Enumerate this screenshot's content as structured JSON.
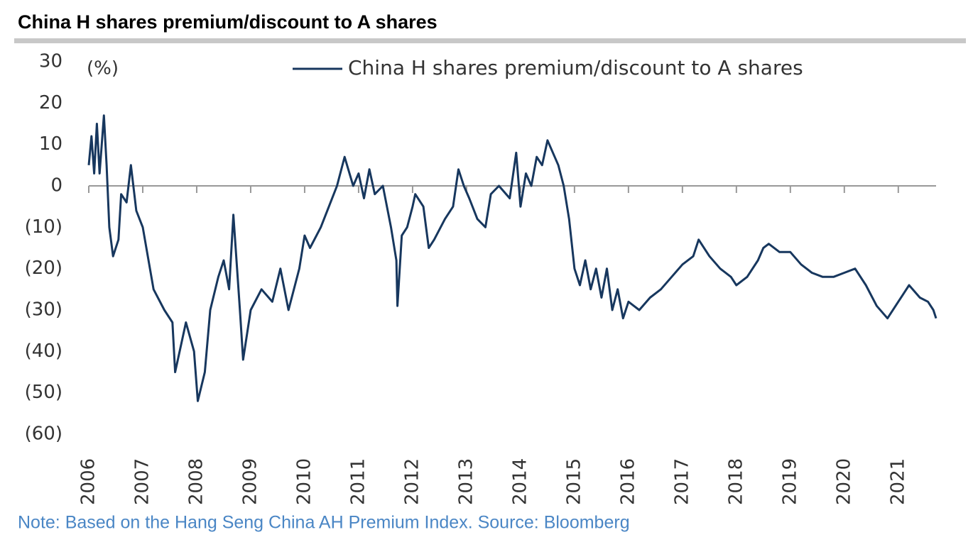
{
  "chart_data": {
    "type": "line",
    "title": "China H shares premium/discount to A shares",
    "y_unit": "(%)",
    "note": "Note: Based on the Hang Seng China AH Premium Index. Source: Bloomberg",
    "x": [
      2006.0,
      2006.05,
      2006.1,
      2006.15,
      2006.2,
      2006.28,
      2006.33,
      2006.38,
      2006.45,
      2006.55,
      2006.6,
      2006.7,
      2006.78,
      2006.88,
      2007.0,
      2007.2,
      2007.4,
      2007.55,
      2007.6,
      2007.8,
      2007.95,
      2008.02,
      2008.15,
      2008.25,
      2008.4,
      2008.5,
      2008.6,
      2008.68,
      2008.8,
      2008.86,
      2009.0,
      2009.2,
      2009.4,
      2009.55,
      2009.7,
      2009.9,
      2010.0,
      2010.1,
      2010.3,
      2010.45,
      2010.6,
      2010.74,
      2010.9,
      2011.0,
      2011.1,
      2011.2,
      2011.3,
      2011.45,
      2011.6,
      2011.7,
      2011.72,
      2011.8,
      2011.9,
      2012.0,
      2012.05,
      2012.2,
      2012.3,
      2012.4,
      2012.6,
      2012.75,
      2012.85,
      2012.95,
      2013.05,
      2013.2,
      2013.35,
      2013.45,
      2013.6,
      2013.8,
      2013.92,
      2014.0,
      2014.1,
      2014.2,
      2014.3,
      2014.4,
      2014.5,
      2014.6,
      2014.7,
      2014.8,
      2014.9,
      2015.0,
      2015.1,
      2015.2,
      2015.3,
      2015.4,
      2015.5,
      2015.6,
      2015.7,
      2015.8,
      2015.9,
      2016.0,
      2016.2,
      2016.4,
      2016.6,
      2016.8,
      2017.0,
      2017.2,
      2017.3,
      2017.5,
      2017.7,
      2017.9,
      2018.0,
      2018.2,
      2018.4,
      2018.5,
      2018.6,
      2018.8,
      2019.0,
      2019.2,
      2019.4,
      2019.6,
      2019.8,
      2020.0,
      2020.2,
      2020.4,
      2020.6,
      2020.8,
      2021.0,
      2021.1,
      2021.2,
      2021.4,
      2021.55,
      2021.65,
      2021.7
    ],
    "series": [
      {
        "name": "China H shares premium/discount to A shares",
        "color": "#17375e",
        "values": [
          5,
          12,
          3,
          15,
          3,
          17,
          5,
          -10,
          -17,
          -13,
          -2,
          -4,
          5,
          -6,
          -10,
          -25,
          -30,
          -33,
          -45,
          -33,
          -40,
          -52,
          -45,
          -30,
          -22,
          -18,
          -25,
          -7,
          -30,
          -42,
          -30,
          -25,
          -28,
          -20,
          -30,
          -20,
          -12,
          -15,
          -10,
          -5,
          0,
          7,
          0,
          3,
          -3,
          4,
          -2,
          0,
          -10,
          -18,
          -29,
          -12,
          -10,
          -5,
          -2,
          -5,
          -15,
          -13,
          -8,
          -5,
          4,
          0,
          -3,
          -8,
          -10,
          -2,
          0,
          -3,
          8,
          -5,
          3,
          0,
          7,
          5,
          11,
          8,
          5,
          0,
          -8,
          -20,
          -24,
          -18,
          -25,
          -20,
          -27,
          -20,
          -30,
          -25,
          -32,
          -28,
          -30,
          -27,
          -25,
          -22,
          -19,
          -17,
          -13,
          -17,
          -20,
          -22,
          -24,
          -22,
          -18,
          -15,
          -14,
          -16,
          -16,
          -19,
          -21,
          -22,
          -22,
          -21,
          -20,
          -24,
          -29,
          -32,
          -28,
          -26,
          -24,
          -27,
          -28,
          -30,
          -32
        ]
      }
    ],
    "xlim": [
      2006,
      2021.7
    ],
    "xticks": [
      2006,
      2007,
      2008,
      2009,
      2010,
      2011,
      2012,
      2013,
      2014,
      2015,
      2016,
      2017,
      2018,
      2019,
      2020,
      2021
    ],
    "ylim": [
      -60,
      30
    ],
    "yticks": [
      30,
      20,
      10,
      0,
      {
        "value": -10,
        "label": "(10)"
      },
      {
        "value": -20,
        "label": "(20)"
      },
      {
        "value": -30,
        "label": "(30)"
      },
      {
        "value": -40,
        "label": "(40)"
      },
      {
        "value": -50,
        "label": "(50)"
      },
      {
        "value": -60,
        "label": "(60)"
      }
    ],
    "grid": false
  }
}
